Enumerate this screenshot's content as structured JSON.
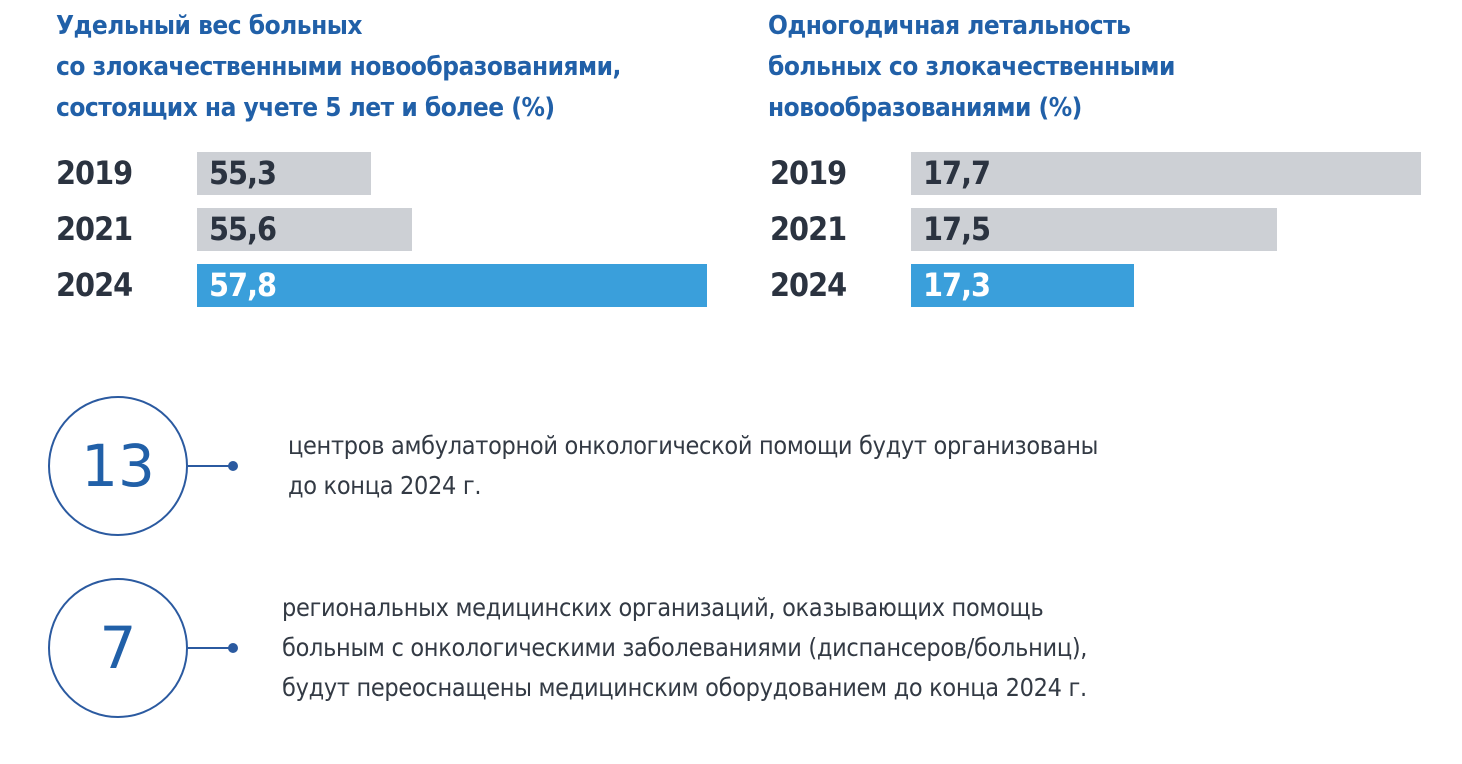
{
  "chart_data": [
    {
      "type": "bar",
      "orientation": "horizontal",
      "title": "Удельный вес больных\nсо злокачественными новообразованиями,\nсостоящих на учете 5 лет и более (%)",
      "categories": [
        "2019",
        "2021",
        "2024"
      ],
      "values": [
        55.3,
        55.6,
        57.8
      ],
      "labels": [
        "55,3",
        "55,6",
        "57,8"
      ],
      "xlim": [
        54.0,
        57.8
      ],
      "colors": [
        "#cdd0d5",
        "#cdd0d5",
        "#3a9fdb"
      ],
      "label_colors": [
        "#2b3340",
        "#2b3340",
        "#ffffff"
      ]
    },
    {
      "type": "bar",
      "orientation": "horizontal",
      "title": "Одногодичная летальность\nбольных со злокачественными\nновообразованиями (%)",
      "categories": [
        "2019",
        "2021",
        "2024"
      ],
      "values": [
        17.7,
        17.5,
        17.3
      ],
      "labels": [
        "17,7",
        "17,5",
        "17,3"
      ],
      "xlim": [
        16.99,
        17.7
      ],
      "colors": [
        "#cdd0d5",
        "#cdd0d5",
        "#3a9fdb"
      ],
      "label_colors": [
        "#2b3340",
        "#2b3340",
        "#ffffff"
      ]
    }
  ],
  "facts": [
    {
      "number": "13",
      "text": "центров амбулаторной онкологической помощи будут организованы\nдо конца 2024 г."
    },
    {
      "number": "7",
      "text": "региональных медицинских организаций, оказывающих помощь\nбольным с онкологическими заболеваниями (диспансеров/больниц),\nбудут переоснащены медицинским оборудованием до конца 2024 г."
    }
  ]
}
